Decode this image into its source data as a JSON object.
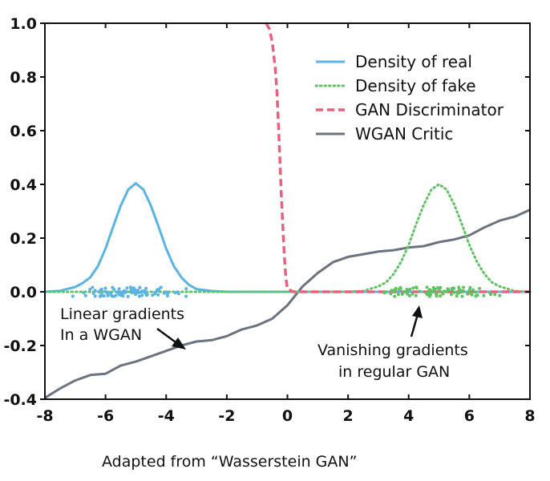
{
  "chart_data": {
    "type": "line",
    "xlim": [
      -8,
      8
    ],
    "ylim": [
      -0.4,
      1.0
    ],
    "xticks": [
      "-8",
      "-6",
      "-4",
      "-2",
      "0",
      "2",
      "4",
      "6",
      "8"
    ],
    "yticks": [
      "-0.4",
      "-0.2",
      "0.0",
      "0.2",
      "0.4",
      "0.6",
      "0.8",
      "1.0"
    ],
    "legend_position": "top-right",
    "series": [
      {
        "name": "Density of real",
        "color": "#5ab4e3",
        "style": "solid",
        "x": [
          -8,
          -7.5,
          -7,
          -6.75,
          -6.5,
          -6.25,
          -6,
          -5.75,
          -5.5,
          -5.25,
          -5,
          -4.75,
          -4.5,
          -4.25,
          -4,
          -3.75,
          -3.5,
          -3.25,
          -3,
          -2.5,
          -2,
          0,
          2,
          4,
          6,
          8
        ],
        "y": [
          0.0,
          0.004,
          0.018,
          0.033,
          0.054,
          0.096,
          0.161,
          0.242,
          0.32,
          0.381,
          0.404,
          0.381,
          0.32,
          0.242,
          0.161,
          0.096,
          0.054,
          0.026,
          0.01,
          0.003,
          0.0,
          0.0,
          0.0,
          0.0,
          0.0,
          0.0
        ]
      },
      {
        "name": "Density of fake",
        "color": "#5fc263",
        "style": "dotted",
        "x": [
          -8,
          -4,
          0,
          2,
          2.5,
          3,
          3.25,
          3.5,
          3.75,
          4,
          4.25,
          4.5,
          4.75,
          5,
          5.25,
          5.5,
          5.75,
          6,
          6.25,
          6.5,
          6.75,
          7,
          7.5,
          8
        ],
        "y": [
          0.0,
          0.0,
          0.0,
          0.0,
          0.003,
          0.02,
          0.035,
          0.066,
          0.112,
          0.175,
          0.253,
          0.325,
          0.381,
          0.4,
          0.381,
          0.325,
          0.253,
          0.175,
          0.112,
          0.066,
          0.035,
          0.02,
          0.003,
          0.0
        ]
      },
      {
        "name": "GAN Discriminator",
        "color": "#e8607e",
        "style": "dashed",
        "x": [
          -0.7,
          -0.6,
          -0.5,
          -0.4,
          -0.35,
          -0.3,
          -0.25,
          -0.2,
          -0.15,
          -0.1,
          -0.05,
          0,
          0.2,
          1,
          4,
          8
        ],
        "y": [
          1.0,
          0.98,
          0.93,
          0.83,
          0.75,
          0.63,
          0.5,
          0.36,
          0.24,
          0.13,
          0.05,
          0.01,
          0.0,
          0.0,
          0.0,
          0.0
        ]
      },
      {
        "name": "WGAN Critic",
        "color": "#6c7380",
        "style": "solid",
        "x": [
          -8,
          -7.5,
          -7,
          -6.5,
          -6,
          -5.5,
          -5,
          -4.5,
          -4,
          -3.5,
          -3,
          -2.5,
          -2,
          -1.5,
          -1,
          -0.5,
          0,
          0.5,
          1,
          1.5,
          2,
          2.5,
          3,
          3.5,
          4,
          4.5,
          5,
          5.5,
          6,
          6.5,
          7,
          7.5,
          8
        ],
        "y": [
          -0.395,
          -0.36,
          -0.33,
          -0.31,
          -0.305,
          -0.275,
          -0.26,
          -0.24,
          -0.22,
          -0.2,
          -0.185,
          -0.18,
          -0.165,
          -0.14,
          -0.125,
          -0.1,
          -0.05,
          0.02,
          0.07,
          0.11,
          0.13,
          0.14,
          0.15,
          0.155,
          0.165,
          0.17,
          0.185,
          0.195,
          0.21,
          0.24,
          0.265,
          0.28,
          0.305
        ]
      }
    ],
    "scatter_groups": [
      {
        "color": "#5ab4e3",
        "center": -5,
        "spread": 1.2,
        "count": 90
      },
      {
        "color": "#5fc263",
        "center": 5,
        "spread": 1.1,
        "count": 90
      }
    ],
    "annotations": [
      {
        "text_lines": [
          "Linear gradients",
          "In  a WGAN"
        ]
      },
      {
        "text_lines": [
          "Vanishing gradients",
          "in regular GAN"
        ]
      }
    ],
    "caption": "Adapted from “Wasserstein GAN”"
  }
}
